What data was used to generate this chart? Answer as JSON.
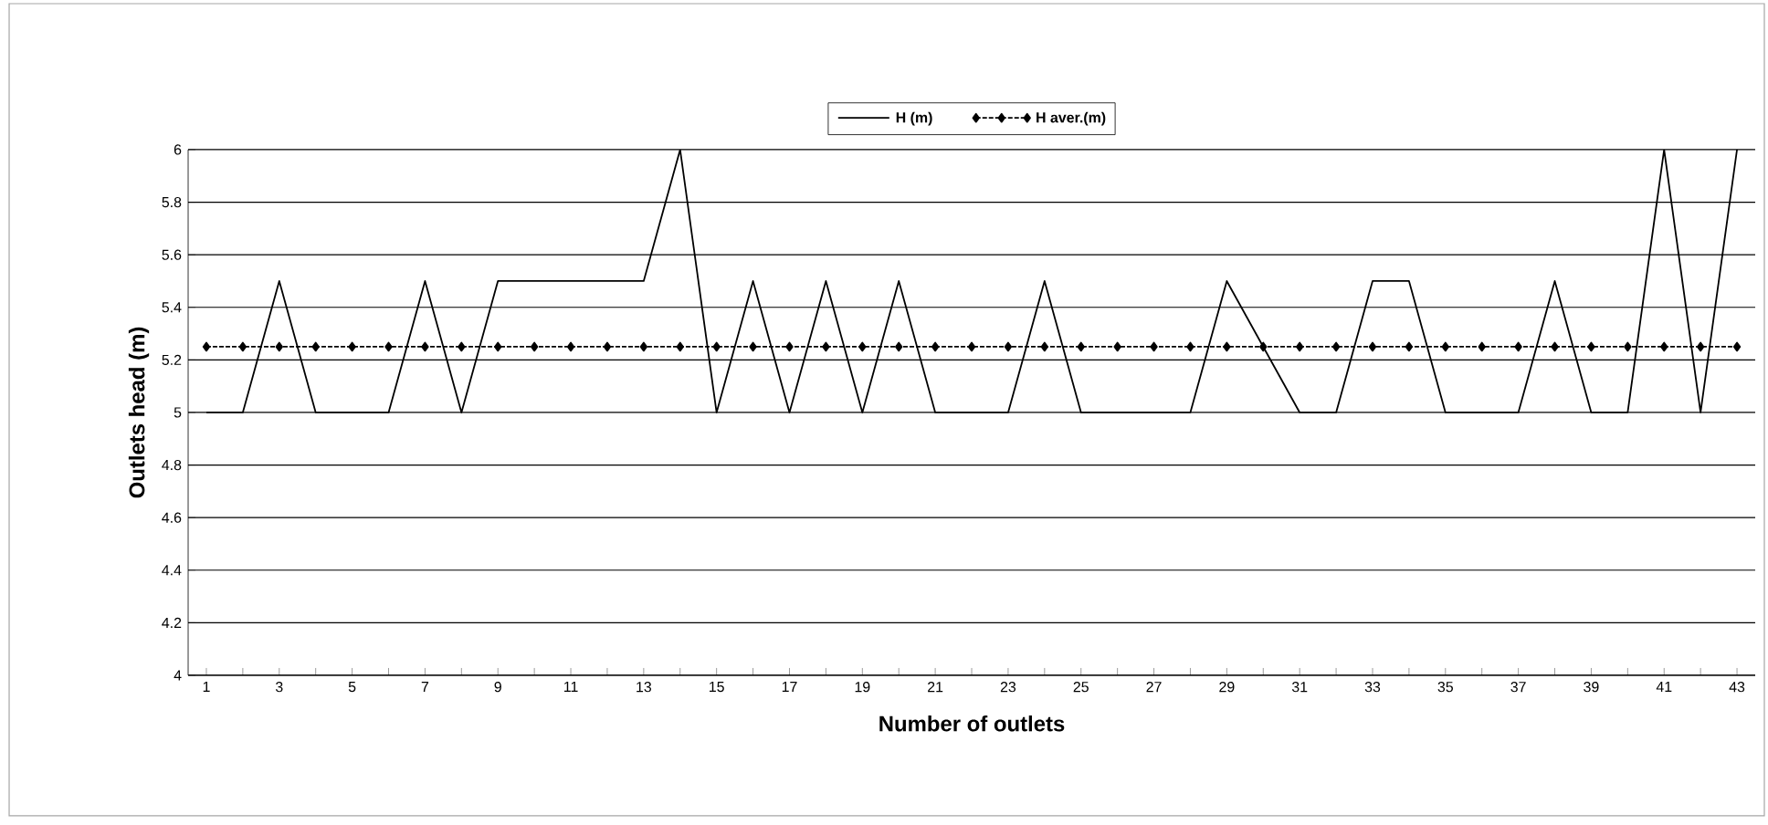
{
  "chart_data": {
    "type": "line",
    "xlabel": "Number of outlets",
    "ylabel": "Outlets head (m)",
    "categories": [
      "1",
      null,
      "3",
      null,
      "5",
      null,
      "7",
      null,
      "9",
      null,
      "11",
      null,
      "13",
      null,
      "15",
      null,
      "17",
      null,
      "19",
      null,
      "21",
      null,
      "23",
      null,
      "25",
      null,
      "27",
      null,
      "29",
      null,
      "31",
      null,
      "33",
      null,
      "35",
      null,
      "37",
      null,
      "39",
      null,
      "41",
      null,
      "43"
    ],
    "series": [
      {
        "name": "H (m)",
        "color": "#000000",
        "line_style": "solid",
        "marker": "none",
        "values": [
          5,
          5,
          5.5,
          5,
          5,
          5,
          5.5,
          5,
          5.5,
          5.5,
          5.5,
          5.5,
          5.5,
          6,
          5,
          5.5,
          5,
          5.5,
          5,
          5.5,
          5,
          5,
          5,
          5.5,
          5,
          5,
          5,
          5,
          5.5,
          5.25,
          5,
          5,
          5.5,
          5.5,
          5,
          5,
          5,
          5.5,
          5,
          5,
          6,
          5,
          6
        ]
      },
      {
        "name": "H aver.(m)",
        "color": "#000000",
        "line_style": "dashed",
        "marker": "diamond",
        "values": [
          5.25,
          5.25,
          5.25,
          5.25,
          5.25,
          5.25,
          5.25,
          5.25,
          5.25,
          5.25,
          5.25,
          5.25,
          5.25,
          5.25,
          5.25,
          5.25,
          5.25,
          5.25,
          5.25,
          5.25,
          5.25,
          5.25,
          5.25,
          5.25,
          5.25,
          5.25,
          5.25,
          5.25,
          5.25,
          5.25,
          5.25,
          5.25,
          5.25,
          5.25,
          5.25,
          5.25,
          5.25,
          5.25,
          5.25,
          5.25,
          5.25,
          5.25,
          5.25
        ]
      }
    ],
    "ylim": [
      4,
      6
    ],
    "yticks": [
      4,
      4.2,
      4.4,
      4.6,
      4.8,
      5,
      5.2,
      5.4,
      5.6,
      5.8,
      6
    ],
    "grid": "y",
    "legend": "top"
  }
}
